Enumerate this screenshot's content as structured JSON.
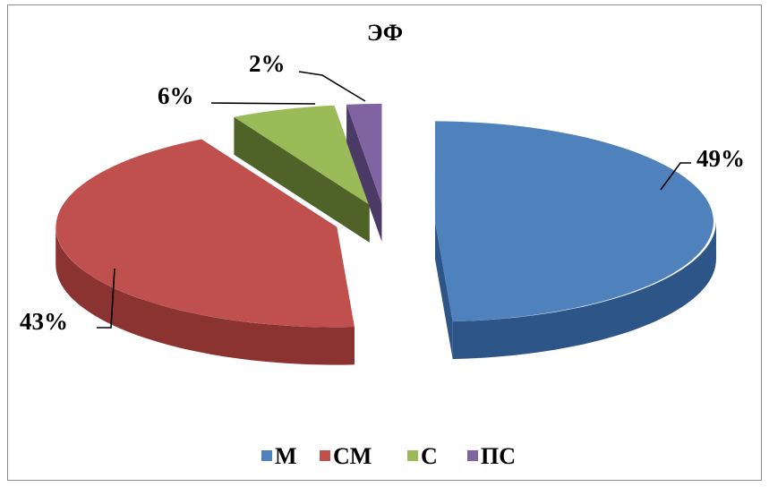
{
  "chart_data": {
    "type": "pie",
    "title": "ЭФ",
    "three_d": true,
    "exploded": true,
    "legend_position": "bottom",
    "slices": [
      {
        "name": "М",
        "value": 49,
        "label": "49%",
        "color": "#4f81bd",
        "side_color": "#2e5587"
      },
      {
        "name": "СМ",
        "value": 43,
        "label": "43%",
        "color": "#c0504d",
        "side_color": "#8a3331"
      },
      {
        "name": "С",
        "value": 6,
        "label": "6%",
        "color": "#9bbb59",
        "side_color": "#4f6228"
      },
      {
        "name": "ПС",
        "value": 2,
        "label": "2%",
        "color": "#8064a2",
        "side_color": "#4b3a66"
      }
    ]
  }
}
